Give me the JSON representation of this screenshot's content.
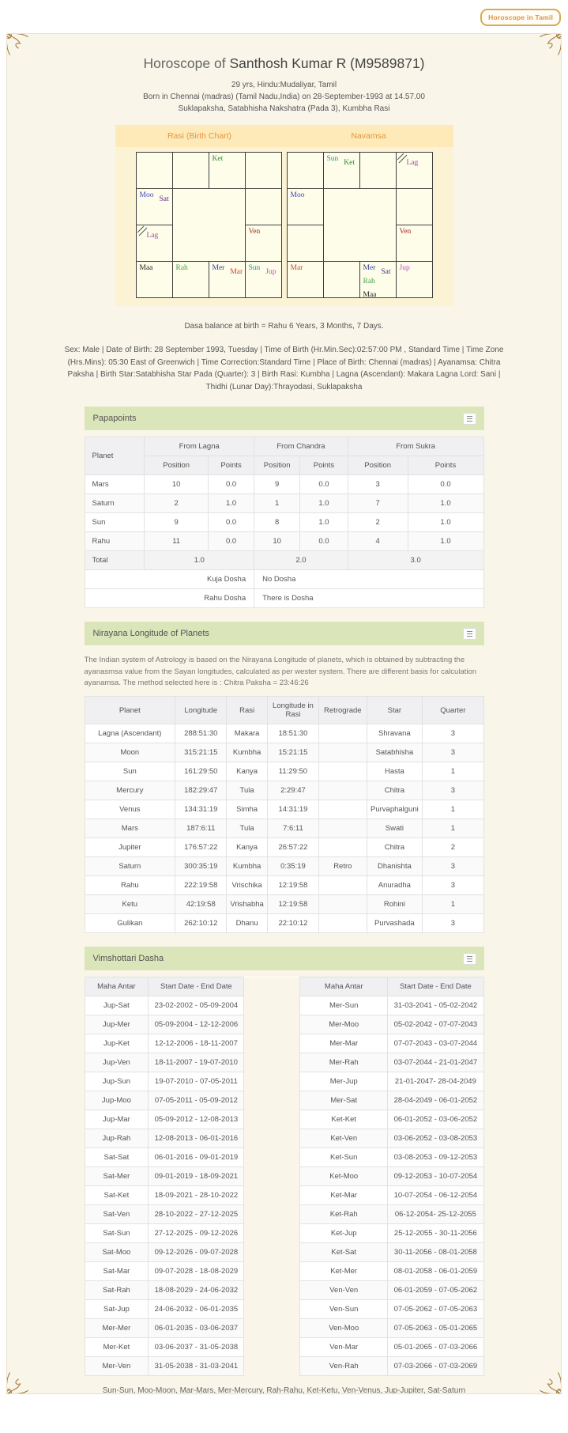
{
  "page": {
    "tamil_button": "Horoscope in Tamil",
    "title_prefix": "Horoscope of",
    "title_name": "Santhosh Kumar R (M9589871)",
    "subtitle_lines": [
      "29 yrs, Hindu:Mudaliyar, Tamil",
      "Born in Chennai (madras) (Tamil Nadu,India) on 28-September-1993 at 14.57.00",
      "Suklapaksha, Satabhisha Nakshatra (Pada 3), Kumbha Rasi"
    ],
    "dasa_balance": "Dasa balance at birth = Rahu 6 Years, 3 Months, 7 Days.",
    "birth_details": "Sex: Male | Date of Birth: 28 September 1993, Tuesday | Time of Birth (Hr.Min.Sec):02:57:00 PM , Standard Time | Time Zone (Hrs.Mins): 05:30 East of Greenwich | Time Correction:Standard Time | Place of Birth: Chennai (madras) | Ayanamsa: Chitra Paksha | Birth Star:Satabhisha Star Pada (Quarter): 3 | Birth Rasi: Kumbha | Lagna (Ascendant): Makara Lagna Lord: Sani | Thidhi (Lunar Day):Thrayodasi, Suklapaksha",
    "dasha_footnote": "Sun-Sun, Moo-Moon, Mar-Mars, Mer-Mercury, Rah-Rahu, Ket-Ketu, Ven-Venus, Jup-Jupiter, Sat-Saturn"
  },
  "colors": {
    "accent_orange": "#e5953e",
    "band_yellow": "#fdeab8",
    "section_green": "#dbe5ba",
    "planet": {
      "moo": "#4040c0",
      "sat": "#5b2c83",
      "lag": "#a048a0",
      "ket": "#2e8b2e",
      "ven": "#9e2b25",
      "maa": "#222222",
      "rah": "#4aa04a",
      "mer": "#2f3f9f",
      "mar": "#cc4433",
      "sun": "#2e8f9f",
      "jup": "#c44fc4"
    }
  },
  "charts": {
    "rasi": {
      "title": "Rasi (Birth Chart)",
      "cells": [
        {
          "planets": []
        },
        {
          "planets": []
        },
        {
          "planets": [
            {
              "n": "Ket",
              "c": "ket"
            }
          ]
        },
        {
          "planets": []
        },
        {
          "planets": [
            {
              "n": "Moo",
              "c": "moo"
            },
            {
              "n": "Sat",
              "c": "sat"
            }
          ]
        },
        {
          "planets": []
        },
        {
          "lagna": true,
          "planets": [
            {
              "n": "Lag",
              "c": "lag"
            }
          ]
        },
        {
          "planets": [
            {
              "n": "Ven",
              "c": "ven"
            }
          ]
        },
        {
          "planets": [
            {
              "n": "Maa",
              "c": "maa"
            }
          ]
        },
        {
          "planets": [
            {
              "n": "Rah",
              "c": "rah"
            }
          ]
        },
        {
          "planets": [
            {
              "n": "Mer",
              "c": "mer"
            },
            {
              "n": "Mar",
              "c": "mar"
            }
          ]
        },
        {
          "planets": [
            {
              "n": "Sun",
              "c": "sun"
            },
            {
              "n": "Jup",
              "c": "jup"
            }
          ]
        }
      ]
    },
    "navamsa": {
      "title": "Navamsa",
      "cells": [
        {
          "planets": []
        },
        {
          "planets": [
            {
              "n": "Sun",
              "c": "sun"
            },
            {
              "n": "Ket",
              "c": "ket"
            }
          ]
        },
        {
          "planets": []
        },
        {
          "lagna": true,
          "planets": [
            {
              "n": "Lag",
              "c": "lag"
            }
          ]
        },
        {
          "planets": [
            {
              "n": "Moo",
              "c": "moo"
            }
          ]
        },
        {
          "planets": []
        },
        {
          "planets": []
        },
        {
          "planets": [
            {
              "n": "Ven",
              "c": "ven"
            }
          ]
        },
        {
          "planets": [
            {
              "n": "Mar",
              "c": "mar"
            }
          ]
        },
        {
          "planets": []
        },
        {
          "planets": [
            {
              "n": "Mer",
              "c": "mer"
            },
            {
              "n": "Sat",
              "c": "sat"
            },
            {
              "n": "Rah",
              "c": "rah"
            },
            {
              "n": "Maa",
              "c": "maa"
            }
          ]
        },
        {
          "planets": [
            {
              "n": "Jup",
              "c": "jup"
            }
          ]
        }
      ]
    }
  },
  "papapoints": {
    "title": "Papapoints",
    "col_planet": "Planet",
    "groups": [
      "From Lagna",
      "From Chandra",
      "From Sukra"
    ],
    "sub_headers": [
      "Position",
      "Points"
    ],
    "rows": [
      {
        "planet": "Mars",
        "values": [
          "10",
          "0.0",
          "9",
          "0.0",
          "3",
          "0.0"
        ]
      },
      {
        "planet": "Saturn",
        "values": [
          "2",
          "1.0",
          "1",
          "1.0",
          "7",
          "1.0"
        ]
      },
      {
        "planet": "Sun",
        "values": [
          "9",
          "0.0",
          "8",
          "1.0",
          "2",
          "1.0"
        ]
      },
      {
        "planet": "Rahu",
        "values": [
          "11",
          "0.0",
          "10",
          "0.0",
          "4",
          "1.0"
        ]
      }
    ],
    "total_label": "Total",
    "totals": [
      "1.0",
      "2.0",
      "3.0"
    ],
    "dosha_rows": [
      {
        "label": "Kuja Dosha",
        "value": "No Dosha"
      },
      {
        "label": "Rahu Dosha",
        "value": "There is Dosha"
      }
    ]
  },
  "nirayana": {
    "title": "Nirayana Longitude of Planets",
    "description": "The Indian system of Astrology is based on the Nirayana Longitude of planets, which is obtained by subtracting the ayanasmsa value from the Sayan longitudes, calculated as per wester system. There are different basis for calculation ayanamsa. The method selected here is : Chitra Paksha = 23:46:26",
    "headers": [
      "Planet",
      "Longitude",
      "Rasi",
      "Longitude in Rasi",
      "Retrograde",
      "Star",
      "Quarter"
    ],
    "rows": [
      [
        "Lagna (Ascendant)",
        "288:51:30",
        "Makara",
        "18:51:30",
        "",
        "Shravana",
        "3"
      ],
      [
        "Moon",
        "315:21:15",
        "Kumbha",
        "15:21:15",
        "",
        "Satabhisha",
        "3"
      ],
      [
        "Sun",
        "161:29:50",
        "Kanya",
        "11:29:50",
        "",
        "Hasta",
        "1"
      ],
      [
        "Mercury",
        "182:29:47",
        "Tula",
        "2:29:47",
        "",
        "Chitra",
        "3"
      ],
      [
        "Venus",
        "134:31:19",
        "Simha",
        "14:31:19",
        "",
        "Purvaphalguni",
        "1"
      ],
      [
        "Mars",
        "187:6:11",
        "Tula",
        "7:6:11",
        "",
        "Swati",
        "1"
      ],
      [
        "Jupiter",
        "176:57:22",
        "Kanya",
        "26:57:22",
        "",
        "Chitra",
        "2"
      ],
      [
        "Saturn",
        "300:35:19",
        "Kumbha",
        "0:35:19",
        "Retro",
        "Dhanishta",
        "3"
      ],
      [
        "Rahu",
        "222:19:58",
        "Vrischika",
        "12:19:58",
        "",
        "Anuradha",
        "3"
      ],
      [
        "Ketu",
        "42:19:58",
        "Vrishabha",
        "12:19:58",
        "",
        "Rohini",
        "1"
      ],
      [
        "Gulikan",
        "262:10:12",
        "Dhanu",
        "22:10:12",
        "",
        "Purvashada",
        "3"
      ]
    ]
  },
  "vimshottari": {
    "title": "Vimshottari Dasha",
    "headers": [
      "Maha Antar",
      "Start Date - End Date"
    ],
    "left_rows": [
      [
        "Jup-Sat",
        "23-02-2002 - 05-09-2004"
      ],
      [
        "Jup-Mer",
        "05-09-2004 - 12-12-2006"
      ],
      [
        "Jup-Ket",
        "12-12-2006 - 18-11-2007"
      ],
      [
        "Jup-Ven",
        "18-11-2007 - 19-07-2010"
      ],
      [
        "Jup-Sun",
        "19-07-2010 - 07-05-2011"
      ],
      [
        "Jup-Moo",
        "07-05-2011 - 05-09-2012"
      ],
      [
        "Jup-Mar",
        "05-09-2012 - 12-08-2013"
      ],
      [
        "Jup-Rah",
        "12-08-2013 - 06-01-2016"
      ],
      [
        "Sat-Sat",
        "06-01-2016 - 09-01-2019"
      ],
      [
        "Sat-Mer",
        "09-01-2019 - 18-09-2021"
      ],
      [
        "Sat-Ket",
        "18-09-2021 - 28-10-2022"
      ],
      [
        "Sat-Ven",
        "28-10-2022 - 27-12-2025"
      ],
      [
        "Sat-Sun",
        "27-12-2025 - 09-12-2026"
      ],
      [
        "Sat-Moo",
        "09-12-2026 - 09-07-2028"
      ],
      [
        "Sat-Mar",
        "09-07-2028 - 18-08-2029"
      ],
      [
        "Sat-Rah",
        "18-08-2029 - 24-06-2032"
      ],
      [
        "Sat-Jup",
        "24-06-2032 - 06-01-2035"
      ],
      [
        "Mer-Mer",
        "06-01-2035 - 03-06-2037"
      ],
      [
        "Mer-Ket",
        "03-06-2037 - 31-05-2038"
      ],
      [
        "Mer-Ven",
        "31-05-2038 - 31-03-2041"
      ]
    ],
    "right_rows": [
      [
        "Mer-Sun",
        "31-03-2041 - 05-02-2042"
      ],
      [
        "Mer-Moo",
        "05-02-2042 - 07-07-2043"
      ],
      [
        "Mer-Mar",
        "07-07-2043 - 03-07-2044"
      ],
      [
        "Mer-Rah",
        "03-07-2044 - 21-01-2047"
      ],
      [
        "Mer-Jup",
        "21-01-2047- 28-04-2049"
      ],
      [
        "Mer-Sat",
        "28-04-2049 - 06-01-2052"
      ],
      [
        "Ket-Ket",
        "06-01-2052 - 03-06-2052"
      ],
      [
        "Ket-Ven",
        "03-06-2052 - 03-08-2053"
      ],
      [
        "Ket-Sun",
        "03-08-2053 - 09-12-2053"
      ],
      [
        "Ket-Moo",
        "09-12-2053 - 10-07-2054"
      ],
      [
        "Ket-Mar",
        "10-07-2054 - 06-12-2054"
      ],
      [
        "Ket-Rah",
        "06-12-2054- 25-12-2055"
      ],
      [
        "Ket-Jup",
        "25-12-2055 - 30-11-2056"
      ],
      [
        "Ket-Sat",
        "30-11-2056 - 08-01-2058"
      ],
      [
        "Ket-Mer",
        "08-01-2058 - 06-01-2059"
      ],
      [
        "Ven-Ven",
        "06-01-2059 - 07-05-2062"
      ],
      [
        "Ven-Sun",
        "07-05-2062 - 07-05-2063"
      ],
      [
        "Ven-Moo",
        "07-05-2063 - 05-01-2065"
      ],
      [
        "Ven-Mar",
        "05-01-2065 - 07-03-2066"
      ],
      [
        "Ven-Rah",
        "07-03-2066 - 07-03-2069"
      ]
    ]
  }
}
